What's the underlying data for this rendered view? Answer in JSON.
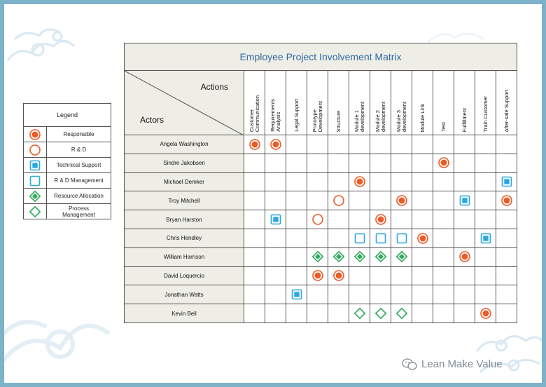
{
  "matrix": {
    "title": "Employee Project Involvement Matrix",
    "corner_actions": "Actions",
    "corner_actors": "Actors",
    "columns": [
      "Customer\nCommunication",
      "Requirements\nAnalysis",
      "Legal Support",
      "Prototype\nDevelopment",
      "Structure",
      "Module 1\ndevelopment",
      "Module 2\ndevelopment",
      "Module 3\ndevelopment",
      "Module Link",
      "Test",
      "Fulfillment",
      "Train Customer",
      "After-sale Support"
    ],
    "rows": [
      {
        "actor": "Angela Washington",
        "cells": [
          "responsible",
          "responsible",
          "",
          "",
          "",
          "",
          "",
          "",
          "",
          "",
          "",
          "",
          ""
        ]
      },
      {
        "actor": "Sindre Jakobsen",
        "cells": [
          "",
          "",
          "",
          "",
          "",
          "",
          "",
          "",
          "",
          "responsible",
          "",
          "",
          ""
        ]
      },
      {
        "actor": "Michael Demker",
        "cells": [
          "",
          "",
          "",
          "",
          "",
          "responsible",
          "",
          "",
          "",
          "",
          "",
          "",
          "technical"
        ]
      },
      {
        "actor": "Troy Mitchell",
        "cells": [
          "",
          "",
          "",
          "",
          "rd",
          "",
          "",
          "responsible",
          "",
          "",
          "technical",
          "",
          "responsible"
        ]
      },
      {
        "actor": "Bryan Harston",
        "cells": [
          "",
          "technical",
          "",
          "rd",
          "",
          "",
          "responsible",
          "",
          "",
          "",
          "",
          "",
          ""
        ]
      },
      {
        "actor": "Chris Hendley",
        "cells": [
          "",
          "",
          "",
          "",
          "",
          "techmgmt",
          "techmgmt",
          "techmgmt",
          "responsible",
          "",
          "",
          "technical",
          ""
        ]
      },
      {
        "actor": "William Harrison",
        "cells": [
          "",
          "",
          "",
          "resource",
          "resource",
          "resource",
          "resource",
          "resource",
          "",
          "",
          "responsible",
          "",
          ""
        ]
      },
      {
        "actor": "David Loquercio",
        "cells": [
          "",
          "",
          "",
          "responsible",
          "responsible",
          "",
          "",
          "",
          "",
          "",
          "",
          "",
          ""
        ]
      },
      {
        "actor": "Jonathan Watts",
        "cells": [
          "",
          "",
          "technical",
          "",
          "",
          "",
          "",
          "",
          "",
          "",
          "",
          "",
          ""
        ]
      },
      {
        "actor": "Kevin Bell",
        "cells": [
          "",
          "",
          "",
          "",
          "",
          "process",
          "process",
          "process",
          "",
          "",
          "",
          "responsible",
          ""
        ]
      }
    ]
  },
  "legend": {
    "title": "Legend",
    "items": [
      {
        "symbol": "responsible",
        "label": "Responsible"
      },
      {
        "symbol": "rd",
        "label": "R & D"
      },
      {
        "symbol": "technical",
        "label": "Technical Support"
      },
      {
        "symbol": "techmgmt",
        "label": "R & D Management"
      },
      {
        "symbol": "resource",
        "label": "Resource Allocation"
      },
      {
        "symbol": "process",
        "label": "Process\nManagement"
      }
    ]
  },
  "colors": {
    "orange": "#ee5a24",
    "blue": "#29a8e0",
    "green": "#2faa5a",
    "title": "#2d6aa6"
  },
  "watermark": "Lean Make Value"
}
